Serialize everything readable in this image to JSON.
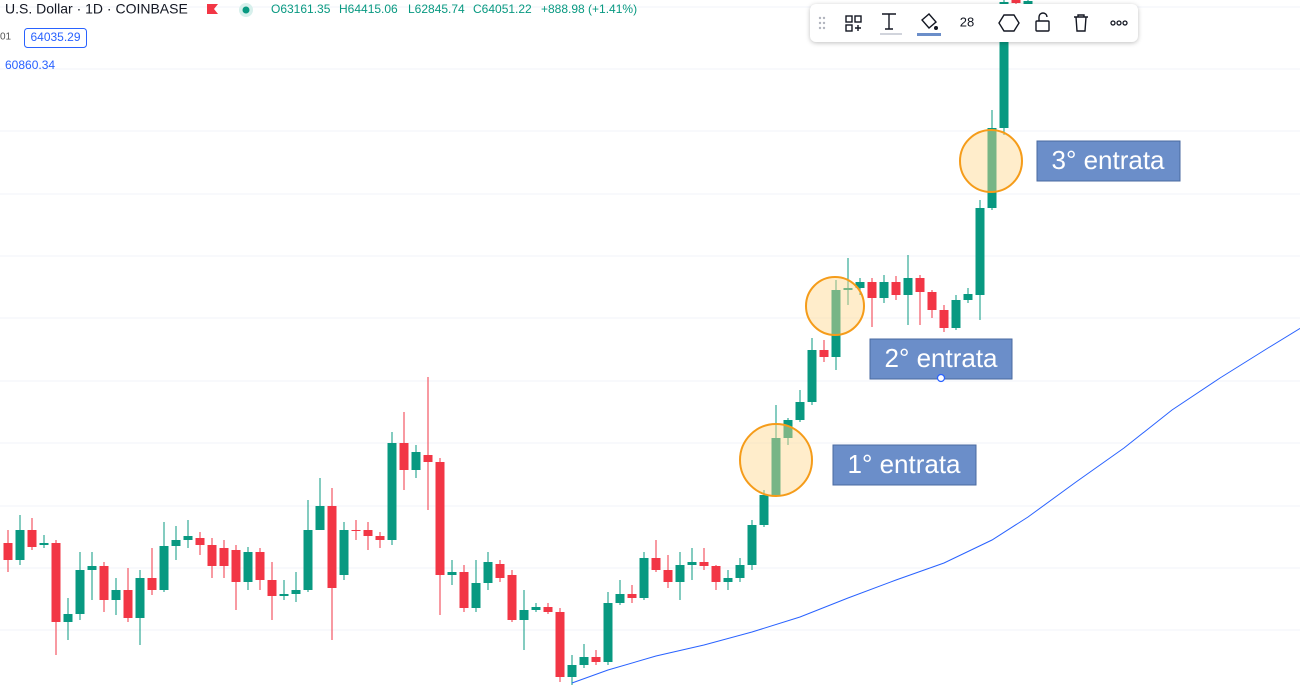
{
  "header": {
    "symbol": "U.S. Dollar · 1D · COINBASE",
    "open": "O63161.35",
    "high": "H64415.06",
    "low": "L62845.74",
    "close": "C64051.22",
    "change": "+888.98 (+1.41%)",
    "price_tag": "64035.29",
    "left_cut": "01",
    "ma_value": "60860.34"
  },
  "toolbar": {
    "line_width": "28"
  },
  "chart_data": {
    "type": "candlestick",
    "up_color": "#089981",
    "down_color": "#f23645",
    "ylim": [
      36560,
      64000
    ],
    "xlim": [
      -0.667,
      107.667
    ],
    "open": [
      42280,
      41600,
      42800,
      42200,
      42280,
      39120,
      39440,
      41200,
      41360,
      40000,
      40400,
      39280,
      40880,
      40400,
      42160,
      42400,
      42480,
      42200,
      42080,
      42000,
      40720,
      41920,
      40800,
      40160,
      40240,
      40400,
      42800,
      43760,
      41000,
      42800,
      42800,
      42560,
      42400,
      46280,
      45200,
      45800,
      45520,
      41000,
      41120,
      39680,
      40680,
      41440,
      41000,
      39200,
      39600,
      39720,
      39520,
      36920,
      37400,
      37720,
      37520,
      39880,
      40240,
      40080,
      41680,
      41200,
      40720,
      41400,
      41520,
      41360,
      40720,
      40880,
      41400,
      43000,
      44200,
      46480,
      47200,
      47920,
      50000,
      49720,
      52400,
      52480,
      52720,
      52080,
      52720,
      52200,
      52880,
      52320,
      51600,
      50880,
      52000,
      52200,
      55680,
      58880,
      64000,
      63840
    ],
    "high": [
      42800,
      43400,
      43280,
      42600,
      42400,
      40080,
      41920,
      41920,
      41520,
      40880,
      41280,
      41200,
      42080,
      43120,
      42960,
      43200,
      42720,
      42480,
      42400,
      42200,
      42120,
      42080,
      41520,
      40800,
      41120,
      44000,
      44880,
      44480,
      43120,
      43200,
      43120,
      42720,
      46720,
      47520,
      46200,
      48920,
      45680,
      41600,
      41400,
      41600,
      41920,
      41600,
      41200,
      40400,
      39880,
      39880,
      39680,
      37800,
      38240,
      38000,
      40320,
      40800,
      40600,
      41920,
      42400,
      41800,
      41920,
      42080,
      42080,
      41400,
      41200,
      41680,
      43200,
      44400,
      47800,
      47280,
      48400,
      50480,
      50400,
      52800,
      53680,
      52880,
      52880,
      53000,
      52960,
      53800,
      53000,
      52400,
      51800,
      52200,
      52480,
      56000,
      59600,
      65200,
      64400,
      64200
    ],
    "low": [
      41120,
      41400,
      42000,
      42080,
      37800,
      38400,
      39200,
      40000,
      39520,
      39400,
      39120,
      38200,
      40200,
      40320,
      41600,
      42080,
      41800,
      40880,
      40880,
      39600,
      40400,
      40400,
      39200,
      40000,
      39920,
      40320,
      42800,
      38400,
      40800,
      42400,
      42000,
      42080,
      42200,
      44400,
      44880,
      43600,
      39400,
      40600,
      39520,
      39520,
      40400,
      40720,
      39120,
      38000,
      39520,
      39440,
      36720,
      36600,
      37280,
      37400,
      37400,
      39800,
      39880,
      40000,
      41120,
      40480,
      40000,
      40800,
      41200,
      40400,
      40400,
      40720,
      41200,
      42920,
      44120,
      46200,
      47120,
      47800,
      49520,
      49200,
      51800,
      52200,
      50920,
      51880,
      52000,
      51000,
      51000,
      51280,
      50720,
      50800,
      51880,
      51200,
      55600,
      58600,
      63800,
      63760
    ],
    "close": [
      41600,
      42800,
      42120,
      42280,
      39120,
      39440,
      41200,
      41360,
      40000,
      40400,
      39280,
      40880,
      40400,
      42160,
      42400,
      42560,
      42200,
      41360,
      41360,
      40720,
      41920,
      40800,
      40160,
      40240,
      40400,
      42800,
      43760,
      40480,
      42800,
      42760,
      42560,
      42400,
      46280,
      45200,
      45920,
      45520,
      41000,
      41120,
      39680,
      40680,
      41520,
      40880,
      39200,
      39600,
      39720,
      39520,
      36920,
      37400,
      37720,
      37520,
      39880,
      40240,
      40080,
      41680,
      41200,
      40720,
      41400,
      41520,
      41360,
      40720,
      40880,
      41400,
      43000,
      44200,
      46480,
      47200,
      47920,
      50000,
      49720,
      52400,
      52480,
      52720,
      52080,
      52720,
      52200,
      52880,
      52320,
      51600,
      50880,
      52000,
      52240,
      55680,
      58880,
      63920,
      63880,
      63960
    ],
    "moving_average": {
      "color": "#2962ff",
      "x": [
        47,
        50,
        54,
        58,
        62,
        66,
        70,
        74,
        78,
        82,
        85,
        89,
        93,
        97,
        101,
        105,
        108
      ],
      "values": [
        36680,
        37200,
        37760,
        38200,
        38720,
        39320,
        40080,
        40800,
        41480,
        42400,
        43320,
        44720,
        46080,
        47600,
        48880,
        50080,
        50960
      ]
    },
    "annotations": [
      "1° entrata",
      "2° entrata",
      "3° entrata"
    ]
  }
}
